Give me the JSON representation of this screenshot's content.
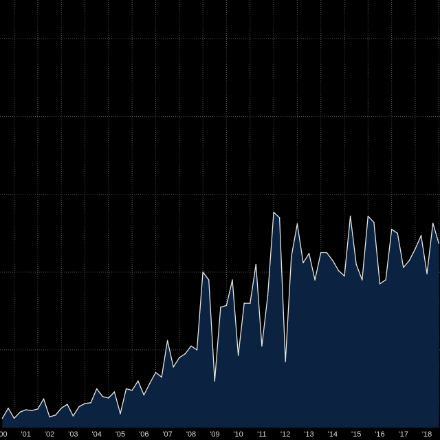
{
  "chart_data": {
    "type": "area",
    "title": "",
    "xlabel": "",
    "ylabel": "",
    "x_tick_labels": [
      "'00",
      "'01",
      "'02",
      "'03",
      "'04",
      "'05",
      "'06",
      "'07",
      "'08",
      "'09",
      "'10",
      "'11",
      "'12",
      "'13",
      "'14",
      "'15",
      "'16",
      "'17",
      "'18"
    ],
    "x_range": [
      1999.9,
      2018.55
    ],
    "ylim": [
      0,
      5.5
    ],
    "grid": true,
    "legend": "none",
    "colors": {
      "fill": "#0b2340",
      "line": "#e6e6e6",
      "background": "#000000",
      "grid": "#5a5a5a"
    },
    "series": [
      {
        "x": [
          2000.0,
          2000.25,
          2000.5,
          2000.75,
          2001.0,
          2001.25,
          2001.5,
          2001.75,
          2002.0,
          2002.25,
          2002.5,
          2002.75,
          2003.0,
          2003.25,
          2003.5,
          2003.75,
          2004.0,
          2004.25,
          2004.5,
          2004.75,
          2005.0,
          2005.25,
          2005.5,
          2005.75,
          2006.0,
          2006.25,
          2006.5,
          2006.75,
          2007.0,
          2007.25,
          2007.5,
          2007.75,
          2008.0,
          2008.25,
          2008.5,
          2008.75,
          2009.0,
          2009.25,
          2009.5,
          2009.75,
          2010.0,
          2010.25,
          2010.5,
          2010.75,
          2011.0,
          2011.25,
          2011.5,
          2011.75,
          2012.0,
          2012.25,
          2012.5,
          2012.75,
          2013.0,
          2013.25,
          2013.5,
          2013.75,
          2014.0,
          2014.25,
          2014.5,
          2014.75,
          2015.0,
          2015.25,
          2015.5,
          2015.75,
          2016.0,
          2016.25,
          2016.5,
          2016.75,
          2017.0,
          2017.25,
          2017.5,
          2017.75,
          2018.0,
          2018.25,
          2018.5
        ],
        "values": [
          0.12,
          0.25,
          0.12,
          0.2,
          0.23,
          0.22,
          0.24,
          0.37,
          0.14,
          0.16,
          0.25,
          0.3,
          0.15,
          0.27,
          0.31,
          0.32,
          0.5,
          0.4,
          0.38,
          0.46,
          0.18,
          0.5,
          0.48,
          0.6,
          0.42,
          0.57,
          0.71,
          0.65,
          1.12,
          0.78,
          0.9,
          0.95,
          1.05,
          1.0,
          2.0,
          1.9,
          0.6,
          1.55,
          1.57,
          1.9,
          0.93,
          1.6,
          1.6,
          2.1,
          1.05,
          1.7,
          2.77,
          2.7,
          0.85,
          2.2,
          2.62,
          2.12,
          2.24,
          1.9,
          2.25,
          2.25,
          2.15,
          2.02,
          1.95,
          2.72,
          2.1,
          1.9,
          2.72,
          2.64,
          1.85,
          1.9,
          2.55,
          2.5,
          2.06,
          2.15,
          2.3,
          2.47,
          1.98,
          2.63,
          2.37
        ]
      }
    ]
  }
}
